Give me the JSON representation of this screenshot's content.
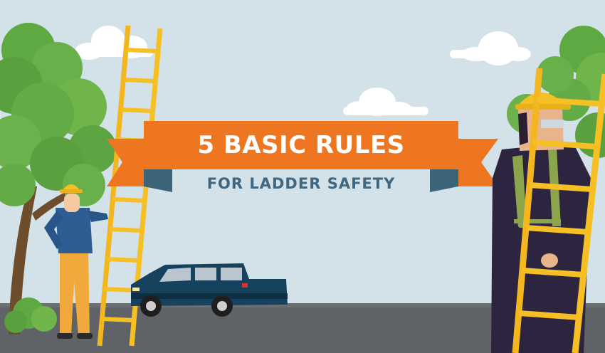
{
  "banner": {
    "title": "5 BASIC RULES",
    "subtitle": "FOR LADDER SAFETY"
  },
  "colors": {
    "sky": "#d3e1e9",
    "road": "#5f6368",
    "banner_orange": "#ee7620",
    "banner_fold": "#3c6478",
    "subtitle_text": "#3f6780",
    "ladder_yellow": "#f6c025",
    "truck_blue": "#17425e",
    "tree_green": "#6fb54a"
  },
  "icons": {
    "left_worker": "worker-with-hard-hat",
    "right_worker": "worker-carrying-ladder",
    "vehicle": "pickup-truck"
  }
}
